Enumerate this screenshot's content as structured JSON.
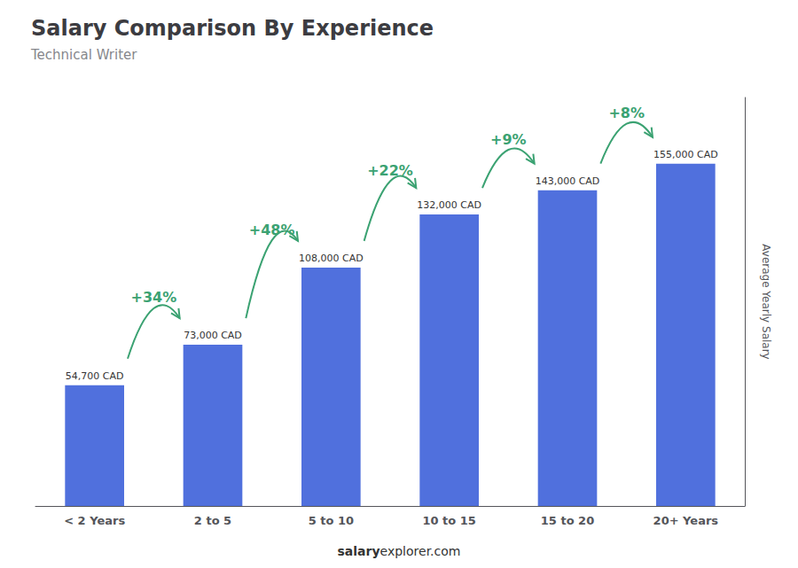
{
  "chart_data": {
    "type": "bar",
    "title": "Salary Comparison By Experience",
    "subtitle": "Technical Writer",
    "categories": [
      "< 2 Years",
      "2 to 5",
      "5 to 10",
      "10 to 15",
      "15 to 20",
      "20+ Years"
    ],
    "values": [
      54700,
      73000,
      108000,
      132000,
      143000,
      155000
    ],
    "value_labels": [
      "54,700 CAD",
      "73,000 CAD",
      "108,000 CAD",
      "132,000 CAD",
      "143,000 CAD",
      "155,000 CAD"
    ],
    "data_labels": true,
    "annotations": [
      "+34%",
      "+48%",
      "+22%",
      "+9%",
      "+8%"
    ],
    "ylabel": "Average Yearly Salary",
    "footer": [
      "salary",
      "explorer.com"
    ],
    "ylim": [
      0,
      185000
    ],
    "grid": false,
    "tick_labels": "x"
  }
}
